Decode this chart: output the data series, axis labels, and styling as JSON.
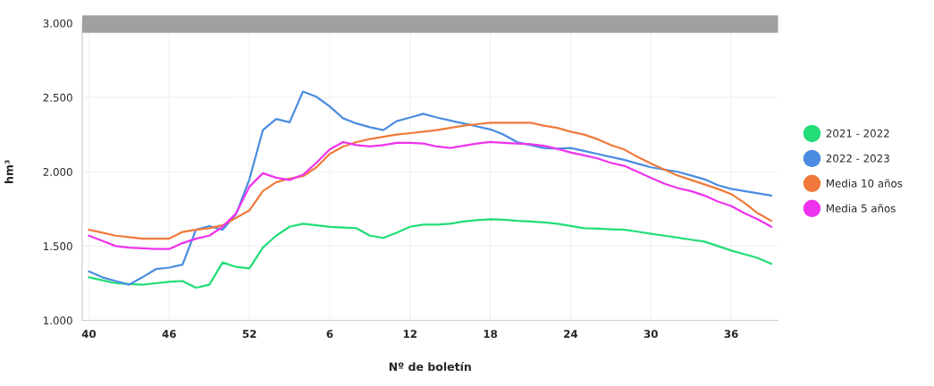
{
  "chart_data": {
    "type": "line",
    "xlabel": "Nº de boletín",
    "ylabel": "hm³",
    "categories": [
      "40",
      null,
      null,
      null,
      null,
      null,
      "46",
      null,
      null,
      null,
      null,
      null,
      "52",
      null,
      null,
      null,
      null,
      null,
      "6",
      null,
      null,
      null,
      null,
      null,
      "12",
      null,
      null,
      null,
      null,
      null,
      "18",
      null,
      null,
      null,
      null,
      null,
      "24",
      null,
      null,
      null,
      null,
      null,
      "30",
      null,
      null,
      null,
      null,
      null,
      "36",
      null,
      null,
      null
    ],
    "ylim": [
      1000,
      3000
    ],
    "yticks": [
      {
        "value": 1000,
        "label": "1.000"
      },
      {
        "value": 1500,
        "label": "1.500"
      },
      {
        "value": 2000,
        "label": "2.000"
      },
      {
        "value": 2500,
        "label": "2.500"
      },
      {
        "value": 3000,
        "label": "3.000"
      }
    ],
    "grid": true,
    "legend": "right",
    "marker": "none",
    "line_style": "solid",
    "series": [
      {
        "name": "2021 - 2022",
        "color": "#22dd77",
        "values": [
          1290,
          1270,
          1250,
          1245,
          1240,
          1250,
          1260,
          1265,
          1220,
          1240,
          1390,
          1360,
          1350,
          1490,
          1570,
          1630,
          1650,
          1640,
          1630,
          1625,
          1620,
          1570,
          1555,
          1590,
          1630,
          1645,
          1645,
          1650,
          1665,
          1675,
          1680,
          1678,
          1670,
          1665,
          1660,
          1650,
          1635,
          1620,
          1617,
          1613,
          1610,
          1597,
          1583,
          1570,
          1557,
          1543,
          1530,
          1500,
          1470,
          1445,
          1420,
          1380
        ]
      },
      {
        "name": "2022 - 2023",
        "color": "#4a8de0",
        "values": [
          1330,
          1290,
          1265,
          1240,
          1290,
          1345,
          1355,
          1375,
          1610,
          1635,
          1610,
          1715,
          1950,
          2280,
          2355,
          2333,
          2540,
          2505,
          2440,
          2360,
          2325,
          2300,
          2280,
          2340,
          2365,
          2390,
          2365,
          2345,
          2325,
          2305,
          2285,
          2250,
          2200,
          2180,
          2160,
          2155,
          2160,
          2140,
          2120,
          2100,
          2080,
          2055,
          2030,
          2015,
          2000,
          1975,
          1950,
          1910,
          1885,
          1870,
          1855,
          1840
        ]
      },
      {
        "name": "Media 10 años",
        "color": "#f07a3c",
        "values": [
          1610,
          1590,
          1570,
          1560,
          1550,
          1550,
          1550,
          1595,
          1610,
          1620,
          1640,
          1690,
          1740,
          1870,
          1930,
          1955,
          1970,
          2030,
          2120,
          2170,
          2200,
          2220,
          2235,
          2250,
          2260,
          2270,
          2280,
          2295,
          2310,
          2320,
          2330,
          2330,
          2330,
          2330,
          2310,
          2295,
          2270,
          2250,
          2220,
          2180,
          2150,
          2100,
          2055,
          2015,
          1975,
          1945,
          1915,
          1885,
          1850,
          1790,
          1720,
          1670
        ]
      },
      {
        "name": "Media 5 años",
        "color": "#ee33ee",
        "values": [
          1570,
          1535,
          1500,
          1490,
          1485,
          1480,
          1480,
          1520,
          1550,
          1570,
          1630,
          1720,
          1900,
          1990,
          1960,
          1945,
          1980,
          2060,
          2150,
          2200,
          2180,
          2170,
          2180,
          2195,
          2195,
          2190,
          2170,
          2160,
          2175,
          2190,
          2200,
          2195,
          2190,
          2185,
          2175,
          2155,
          2130,
          2110,
          2090,
          2060,
          2040,
          2000,
          1960,
          1920,
          1890,
          1870,
          1840,
          1800,
          1770,
          1720,
          1680,
          1630
        ]
      }
    ]
  }
}
